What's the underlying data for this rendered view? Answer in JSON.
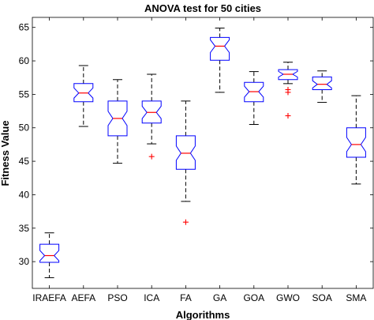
{
  "chart_data": {
    "type": "boxplot",
    "title": "ANOVA test for 50 cities",
    "xlabel": "Algorithms",
    "ylabel": "Fitness Value",
    "ylim": [
      26,
      66.5
    ],
    "yticks": [
      30,
      35,
      40,
      45,
      50,
      55,
      60,
      65
    ],
    "grid": false,
    "notched": true,
    "colors": {
      "box": "#0000ff",
      "median": "#ff0000",
      "whisker": "#000000",
      "outlier": "#ff0000"
    },
    "categories": [
      "IRAEFA",
      "AEFA",
      "PSO",
      "ICA",
      "FA",
      "GA",
      "GOA",
      "GWO",
      "SOA",
      "SMA"
    ],
    "boxes": [
      {
        "name": "IRAEFA",
        "whisker_low": 27.6,
        "q1": 29.9,
        "median": 30.9,
        "q3": 32.6,
        "whisker_high": 34.3,
        "outliers": []
      },
      {
        "name": "AEFA",
        "whisker_low": 50.2,
        "q1": 53.9,
        "median": 55.2,
        "q3": 56.6,
        "whisker_high": 59.3,
        "outliers": []
      },
      {
        "name": "PSO",
        "whisker_low": 44.7,
        "q1": 48.8,
        "median": 51.4,
        "q3": 54.0,
        "whisker_high": 57.2,
        "outliers": []
      },
      {
        "name": "ICA",
        "whisker_low": 47.6,
        "q1": 50.7,
        "median": 52.3,
        "q3": 54.0,
        "whisker_high": 58.0,
        "outliers": [
          45.7
        ]
      },
      {
        "name": "FA",
        "whisker_low": 39.0,
        "q1": 43.8,
        "median": 46.2,
        "q3": 48.8,
        "whisker_high": 54.0,
        "outliers": [
          35.9
        ]
      },
      {
        "name": "GA",
        "whisker_low": 55.3,
        "q1": 60.1,
        "median": 62.2,
        "q3": 63.5,
        "whisker_high": 64.9,
        "outliers": []
      },
      {
        "name": "GOA",
        "whisker_low": 50.5,
        "q1": 53.9,
        "median": 55.4,
        "q3": 56.8,
        "whisker_high": 58.4,
        "outliers": []
      },
      {
        "name": "GWO",
        "whisker_low": 56.6,
        "q1": 57.2,
        "median": 58.0,
        "q3": 58.7,
        "whisker_high": 59.8,
        "outliers": [
          55.7,
          55.3,
          51.8
        ]
      },
      {
        "name": "SOA",
        "whisker_low": 53.8,
        "q1": 55.7,
        "median": 56.5,
        "q3": 57.6,
        "whisker_high": 58.5,
        "outliers": []
      },
      {
        "name": "SMA",
        "whisker_low": 41.6,
        "q1": 45.6,
        "median": 47.5,
        "q3": 50.0,
        "whisker_high": 54.8,
        "outliers": []
      }
    ]
  }
}
